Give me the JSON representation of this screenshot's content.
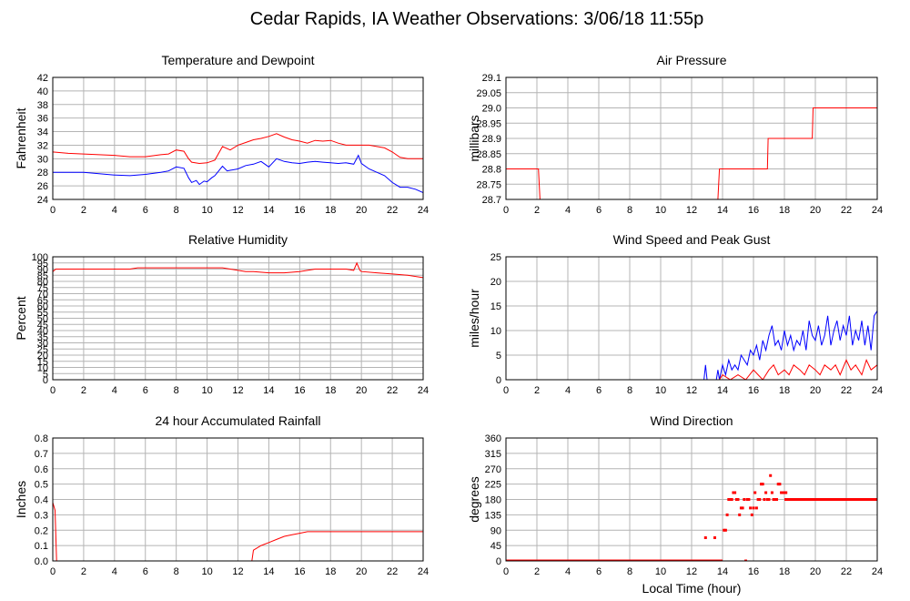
{
  "page": {
    "title": "Cedar Rapids, IA Weather Observations: 3/06/18 11:55p",
    "xlabel_bottom": "Local Time (hour)"
  },
  "colors": {
    "red": "#ff0000",
    "blue": "#0000ff",
    "grid": "#b4b4b4"
  },
  "chart_data": [
    {
      "type": "line",
      "title": "Temperature and Dewpoint",
      "ylabel": "Fahrenheit",
      "xlim": [
        0,
        24
      ],
      "ylim": [
        24,
        42
      ],
      "yticks": [
        "24",
        "26",
        "28",
        "30",
        "32",
        "34",
        "36",
        "38",
        "40",
        "42"
      ],
      "xticks": [
        "0",
        "2",
        "4",
        "6",
        "8",
        "10",
        "12",
        "14",
        "16",
        "18",
        "20",
        "22",
        "24"
      ],
      "grid": true,
      "series": [
        {
          "color": "#ff0000",
          "x": [
            0,
            1,
            2,
            3,
            4,
            5,
            6,
            7,
            7.5,
            8,
            8.5,
            8.8,
            9,
            9.5,
            10,
            10.5,
            11,
            11.5,
            12,
            12.5,
            13,
            13.5,
            14,
            14.5,
            15,
            15.5,
            16,
            16.5,
            17,
            17.5,
            18,
            18.5,
            19,
            19.5,
            20,
            20.5,
            21,
            21.5,
            22,
            22.5,
            23,
            23.5,
            24
          ],
          "y": [
            31,
            30.8,
            30.7,
            30.6,
            30.5,
            30.3,
            30.3,
            30.6,
            30.7,
            31.3,
            31.1,
            30,
            29.5,
            29.3,
            29.4,
            29.8,
            31.8,
            31.3,
            32,
            32.4,
            32.8,
            33,
            33.3,
            33.7,
            33.2,
            32.8,
            32.6,
            32.3,
            32.7,
            32.6,
            32.7,
            32.3,
            32,
            32,
            32,
            32,
            31.8,
            31.6,
            31,
            30.2,
            30,
            30,
            30
          ]
        },
        {
          "color": "#0000ff",
          "x": [
            0,
            1,
            2,
            3,
            4,
            5,
            6,
            7,
            7.5,
            8,
            8.5,
            8.8,
            9,
            9.3,
            9.5,
            9.8,
            10,
            10.3,
            10.5,
            11,
            11.3,
            11.5,
            12,
            12.5,
            13,
            13.5,
            14,
            14.5,
            15,
            15.5,
            16,
            16.5,
            17,
            17.5,
            18,
            18.5,
            19,
            19.5,
            19.8,
            20,
            20.5,
            21,
            21.5,
            22,
            22.5,
            23,
            23.5,
            24
          ],
          "y": [
            28,
            28,
            28,
            27.8,
            27.6,
            27.5,
            27.7,
            28,
            28.2,
            28.8,
            28.6,
            27.2,
            26.5,
            26.8,
            26.2,
            26.7,
            26.6,
            27.2,
            27.5,
            28.9,
            28.2,
            28.3,
            28.5,
            29,
            29.2,
            29.6,
            28.8,
            30,
            29.6,
            29.4,
            29.3,
            29.5,
            29.6,
            29.5,
            29.4,
            29.3,
            29.4,
            29.2,
            30.5,
            29.3,
            28.5,
            28,
            27.5,
            26.5,
            25.8,
            25.8,
            25.5,
            25
          ]
        }
      ]
    },
    {
      "type": "line",
      "title": "Air Pressure",
      "ylabel": "millibars",
      "xlim": [
        0,
        24
      ],
      "ylim": [
        28.7,
        29.1
      ],
      "yticks": [
        "28.7",
        "28.75",
        "28.8",
        "28.85",
        "28.9",
        "28.95",
        "29.0",
        "29.05",
        "29.1"
      ],
      "xticks": [
        "0",
        "2",
        "4",
        "6",
        "8",
        "10",
        "12",
        "14",
        "16",
        "18",
        "20",
        "22",
        "24"
      ],
      "grid": true,
      "series": [
        {
          "color": "#ff0000",
          "x": [
            0,
            2.1,
            2.2,
            13.7,
            13.8,
            16.9,
            16.95,
            19.8,
            19.85,
            24
          ],
          "y": [
            28.8,
            28.8,
            28.7,
            28.7,
            28.8,
            28.8,
            28.9,
            28.9,
            29.0,
            29.0
          ]
        }
      ]
    },
    {
      "type": "line",
      "title": "Relative Humidity",
      "ylabel": "Percent",
      "xlim": [
        0,
        24
      ],
      "ylim": [
        0,
        100
      ],
      "yticks": [
        "0",
        "5",
        "10",
        "15",
        "20",
        "25",
        "30",
        "35",
        "40",
        "45",
        "50",
        "55",
        "60",
        "65",
        "70",
        "75",
        "80",
        "85",
        "90",
        "95",
        "100"
      ],
      "xticks": [
        "0",
        "2",
        "4",
        "6",
        "8",
        "10",
        "12",
        "14",
        "16",
        "18",
        "20",
        "22",
        "24"
      ],
      "grid": true,
      "series": [
        {
          "color": "#ff0000",
          "x": [
            0,
            0.2,
            1,
            2,
            3,
            4,
            5,
            5.5,
            6,
            7,
            8,
            9,
            10,
            11,
            11.5,
            12,
            12.5,
            13,
            14,
            15,
            16,
            17,
            18,
            19,
            19.5,
            19.7,
            19.9,
            20,
            21,
            22,
            23,
            24
          ],
          "y": [
            88,
            90,
            90,
            90,
            90,
            90,
            90,
            91,
            91,
            91,
            91,
            91,
            91,
            91,
            90,
            89,
            88,
            88,
            87,
            87,
            88,
            90,
            90,
            90,
            89,
            95,
            89,
            88,
            87,
            86,
            85,
            83
          ]
        }
      ]
    },
    {
      "type": "line",
      "title": "Wind Speed and Peak Gust",
      "ylabel": "miles/hour",
      "xlim": [
        0,
        24
      ],
      "ylim": [
        0,
        25
      ],
      "yticks": [
        "0",
        "5",
        "10",
        "15",
        "20",
        "25"
      ],
      "xticks": [
        "0",
        "2",
        "4",
        "6",
        "8",
        "10",
        "12",
        "14",
        "16",
        "18",
        "20",
        "22",
        "24"
      ],
      "grid": true,
      "series": [
        {
          "color": "#0000ff",
          "x": [
            0,
            12.8,
            12.9,
            13,
            13.3,
            13.6,
            13.7,
            13.8,
            14,
            14.2,
            14.4,
            14.6,
            14.8,
            15,
            15.2,
            15.4,
            15.6,
            15.8,
            16,
            16.2,
            16.4,
            16.6,
            16.8,
            17,
            17.2,
            17.4,
            17.6,
            17.8,
            18,
            18.2,
            18.4,
            18.6,
            18.8,
            19,
            19.2,
            19.4,
            19.6,
            19.8,
            20,
            20.2,
            20.4,
            20.6,
            20.8,
            21,
            21.2,
            21.4,
            21.6,
            21.8,
            22,
            22.2,
            22.4,
            22.6,
            22.8,
            23,
            23.2,
            23.4,
            23.6,
            23.8,
            24
          ],
          "y": [
            0,
            0,
            3,
            0,
            0,
            0,
            2,
            0,
            3,
            1,
            4,
            2,
            3,
            2,
            5,
            4,
            3,
            6,
            5,
            7,
            4,
            8,
            6,
            9,
            11,
            7,
            8,
            6,
            10,
            7,
            9,
            6,
            8,
            7,
            10,
            6,
            12,
            9,
            8,
            11,
            7,
            9,
            13,
            7,
            10,
            12,
            8,
            11,
            9,
            13,
            7,
            10,
            8,
            12,
            7,
            11,
            6,
            13,
            14
          ]
        },
        {
          "color": "#ff0000",
          "x": [
            0,
            13.8,
            14,
            14.5,
            15,
            15.5,
            16,
            16.3,
            16.6,
            17,
            17.3,
            17.6,
            18,
            18.3,
            18.6,
            19,
            19.3,
            19.6,
            20,
            20.3,
            20.6,
            21,
            21.3,
            21.6,
            22,
            22.3,
            22.6,
            23,
            23.3,
            23.6,
            24
          ],
          "y": [
            0,
            0,
            1,
            0,
            1,
            0,
            2,
            1,
            0,
            2,
            3,
            1,
            2,
            1,
            3,
            2,
            1,
            3,
            2,
            1,
            3,
            2,
            3,
            1,
            4,
            2,
            3,
            1,
            4,
            2,
            3
          ]
        }
      ]
    },
    {
      "type": "line",
      "title": "24 hour Accumulated Rainfall",
      "ylabel": "Inches",
      "xlim": [
        0,
        24
      ],
      "ylim": [
        0,
        0.8
      ],
      "yticks": [
        "0.0",
        "0.1",
        "0.2",
        "0.3",
        "0.4",
        "0.5",
        "0.6",
        "0.7",
        "0.8"
      ],
      "xticks": [
        "0",
        "2",
        "4",
        "6",
        "8",
        "10",
        "12",
        "14",
        "16",
        "18",
        "20",
        "22",
        "24"
      ],
      "grid": true,
      "series": [
        {
          "color": "#ff0000",
          "x": [
            0,
            0.15,
            0.25,
            12.8,
            12.9,
            13.0,
            13.5,
            14,
            14.5,
            15,
            15.5,
            16,
            16.5,
            17,
            24
          ],
          "y": [
            0.38,
            0.33,
            0,
            0,
            0,
            0.07,
            0.1,
            0.12,
            0.14,
            0.16,
            0.17,
            0.18,
            0.19,
            0.19,
            0.19
          ]
        }
      ]
    },
    {
      "type": "scatter",
      "title": "Wind Direction",
      "ylabel": "degrees",
      "xlabel": "Local Time (hour)",
      "xlim": [
        0,
        24
      ],
      "ylim": [
        0,
        360
      ],
      "yticks": [
        "0",
        "45",
        "90",
        "135",
        "180",
        "225",
        "270",
        "315",
        "360"
      ],
      "xticks": [
        "0",
        "2",
        "4",
        "6",
        "8",
        "10",
        "12",
        "14",
        "16",
        "18",
        "20",
        "22",
        "24"
      ],
      "grid": true,
      "series": [
        {
          "color": "#ff0000",
          "x": [
            12.9,
            13.5,
            14.1,
            14.2,
            14.3,
            14.4,
            14.5,
            14.6,
            14.7,
            14.8,
            14.9,
            15.0,
            15.1,
            15.2,
            15.3,
            15.4,
            15.5,
            15.6,
            15.7,
            15.8,
            15.9,
            16.0,
            16.1,
            16.2,
            16.3,
            16.4,
            16.5,
            16.6,
            16.7,
            16.8,
            16.9,
            17.0,
            17.1,
            17.2,
            17.3,
            17.4,
            17.5,
            17.6,
            17.7,
            17.8,
            17.9,
            18.0,
            18.1,
            18.2
          ],
          "y": [
            68,
            68,
            90,
            90,
            135,
            180,
            180,
            180,
            200,
            200,
            180,
            180,
            135,
            155,
            155,
            180,
            0,
            180,
            180,
            155,
            135,
            155,
            200,
            155,
            180,
            180,
            225,
            225,
            180,
            200,
            180,
            180,
            250,
            200,
            180,
            180,
            180,
            225,
            225,
            200,
            200,
            200,
            200,
            180
          ],
          "segments": [
            {
              "x0": 0,
              "x1": 14.0,
              "y": 0
            },
            {
              "x0": 18.0,
              "x1": 24,
              "y": 180
            }
          ]
        }
      ]
    }
  ]
}
